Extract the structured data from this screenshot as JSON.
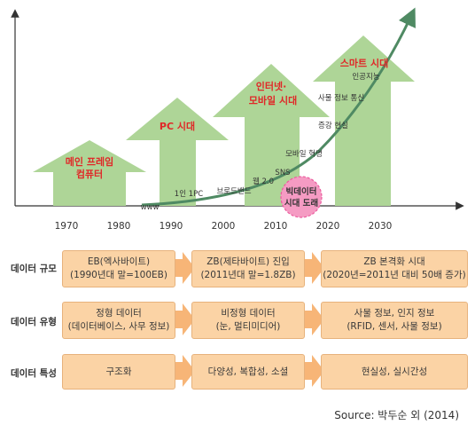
{
  "timeline": {
    "years": [
      "1970",
      "1980",
      "1990",
      "2000",
      "2010",
      "2020",
      "2030"
    ],
    "eras": [
      "메인 프레임",
      "컴퓨터",
      "PC 시대",
      "인터넷·",
      "모바일 시대",
      "스마트 시대"
    ],
    "tech_labels": {
      "www": "www",
      "one_pc": "1인 1PC",
      "broadband": "브로드밴드",
      "web2": "웹 2.0",
      "sns": "SNS",
      "mobile_revolution": "모바일 혁명",
      "augmented_reality": "증강 현실",
      "iot": "사물 정보 통신",
      "ai": "인공지능"
    },
    "bigdata_badge": [
      "빅데이터",
      "시대 도래"
    ],
    "colors": {
      "arrow_fill": "#aed597",
      "curve": "#4f8a63",
      "era_text": "#e02828",
      "badge": "#f59bc3"
    }
  },
  "table": {
    "rows": [
      {
        "label": "데이터 규모",
        "cells": [
          [
            "EB(엑사바이트)",
            "(1990년대 말=100EB)"
          ],
          [
            "ZB(제타바이트) 진입",
            "(2011년대 말=1.8ZB)"
          ],
          [
            "ZB 본격화 시대",
            "(2020년=2011년 대비 50배 증가)"
          ]
        ]
      },
      {
        "label": "데이터 유형",
        "cells": [
          [
            "정형 데이터",
            "(데이터베이스, 사무 정보)"
          ],
          [
            "비정형 데이터",
            "(눈, 멀티미디어)"
          ],
          [
            "사물 정보, 인지 정보",
            "(RFID, 센서, 사물 정보)"
          ]
        ]
      },
      {
        "label": "데이터 특성",
        "cells": [
          [
            "구조화"
          ],
          [
            "다양성, 복합성, 소셜"
          ],
          [
            "현실성, 실시간성"
          ]
        ]
      }
    ],
    "colors": {
      "cell_fill": "#fbd3a5",
      "arrow": "#f7b577"
    }
  },
  "source": "Source: 박두순 외 (2014)"
}
